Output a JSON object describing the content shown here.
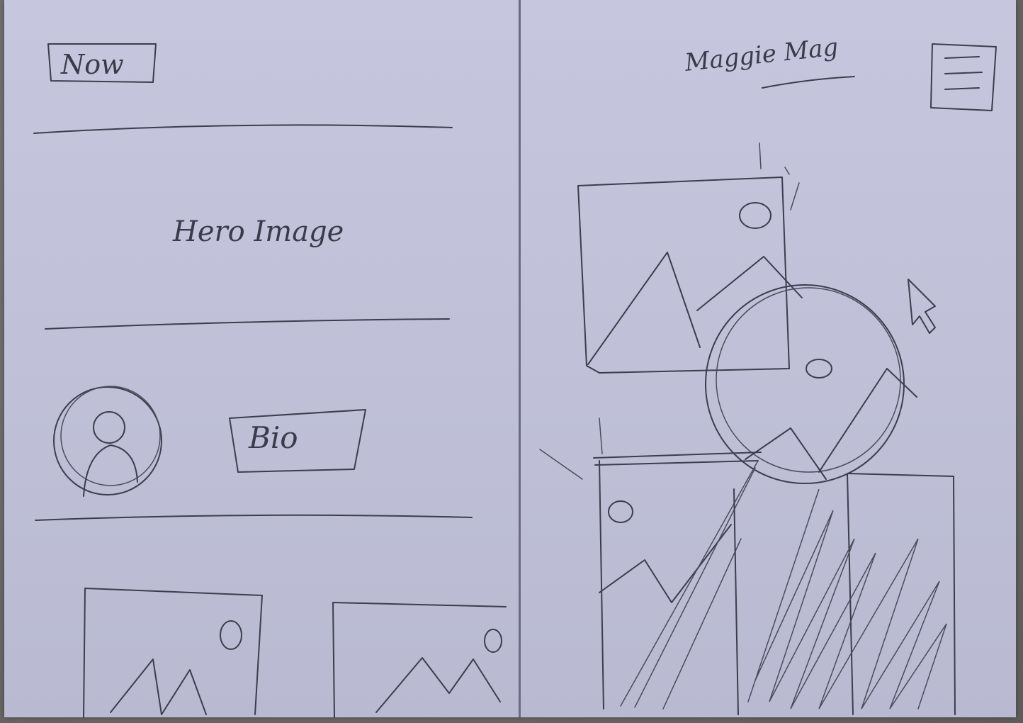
{
  "left_page": {
    "nav_button_label": "Now",
    "hero_label": "Hero Image",
    "bio_button_label": "Bio"
  },
  "right_page": {
    "signature_text": "Maggie Mag"
  },
  "icons": {
    "menu": "hamburger-menu-icon",
    "avatar": "user-avatar-icon",
    "image": "image-placeholder-icon",
    "cursor": "mouse-pointer-icon"
  },
  "colors": {
    "paper": "#c3c4dc",
    "pencil": "#3c3d4c",
    "background": "#6e6c6a"
  }
}
